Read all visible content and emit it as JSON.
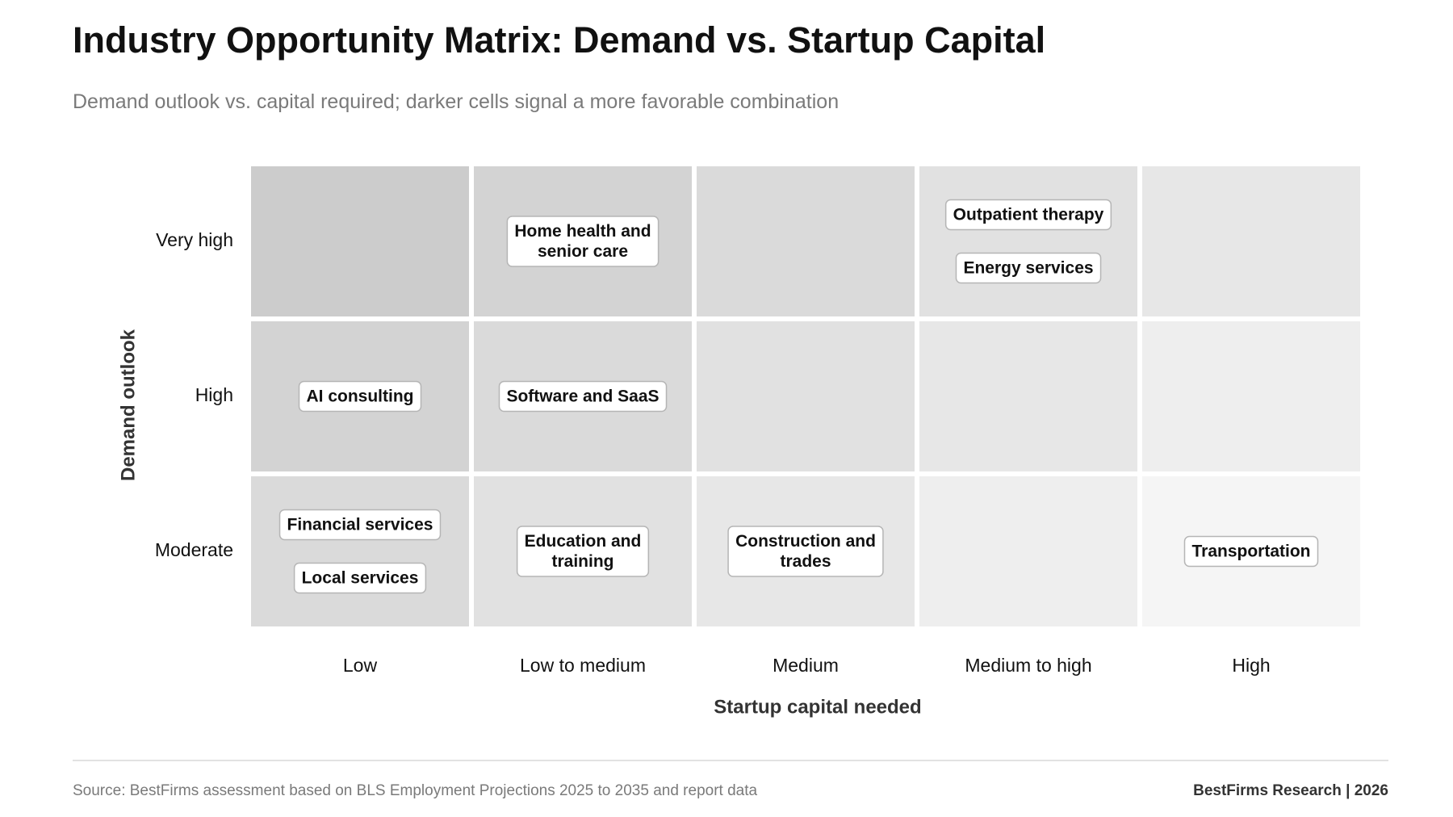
{
  "title": "Industry Opportunity Matrix: Demand vs. Startup Capital",
  "subtitle": "Demand outlook vs. capital required; darker cells signal a more favorable combination",
  "chart_data": {
    "type": "heatmap",
    "xlabel": "Startup capital needed",
    "ylabel": "Demand outlook",
    "x_categories": [
      "Low",
      "Low to medium",
      "Medium",
      "Medium to high",
      "High"
    ],
    "y_categories": [
      "Very high",
      "High",
      "Moderate"
    ],
    "grid": false,
    "colors": {
      "high_favorability": "#cccccc",
      "low_favorability": "#f5f5f5",
      "tag_fill": "#ffffff",
      "tag_border": "#b5b5b5"
    },
    "cells": [
      {
        "y": "Very high",
        "x": "Low",
        "industries": []
      },
      {
        "y": "Very high",
        "x": "Low to medium",
        "industries": [
          [
            "Home health and",
            "senior care"
          ]
        ]
      },
      {
        "y": "Very high",
        "x": "Medium",
        "industries": []
      },
      {
        "y": "Very high",
        "x": "Medium to high",
        "industries": [
          [
            "Outpatient therapy"
          ],
          [
            "Energy services"
          ]
        ]
      },
      {
        "y": "Very high",
        "x": "High",
        "industries": []
      },
      {
        "y": "High",
        "x": "Low",
        "industries": [
          [
            "AI consulting"
          ]
        ]
      },
      {
        "y": "High",
        "x": "Low to medium",
        "industries": [
          [
            "Software and SaaS"
          ]
        ]
      },
      {
        "y": "High",
        "x": "Medium",
        "industries": []
      },
      {
        "y": "High",
        "x": "Medium to high",
        "industries": []
      },
      {
        "y": "High",
        "x": "High",
        "industries": []
      },
      {
        "y": "Moderate",
        "x": "Low",
        "industries": [
          [
            "Financial services"
          ],
          [
            "Local services"
          ]
        ]
      },
      {
        "y": "Moderate",
        "x": "Low to medium",
        "industries": [
          [
            "Education and",
            "training"
          ]
        ]
      },
      {
        "y": "Moderate",
        "x": "Medium",
        "industries": [
          [
            "Construction and",
            "trades"
          ]
        ]
      },
      {
        "y": "Moderate",
        "x": "Medium to high",
        "industries": []
      },
      {
        "y": "Moderate",
        "x": "High",
        "industries": [
          [
            "Transportation"
          ]
        ]
      }
    ]
  },
  "footer": {
    "source": "Source: BestFirms assessment based on BLS Employment Projections 2025 to 2035 and report data",
    "credit": "BestFirms Research  |  2026"
  }
}
